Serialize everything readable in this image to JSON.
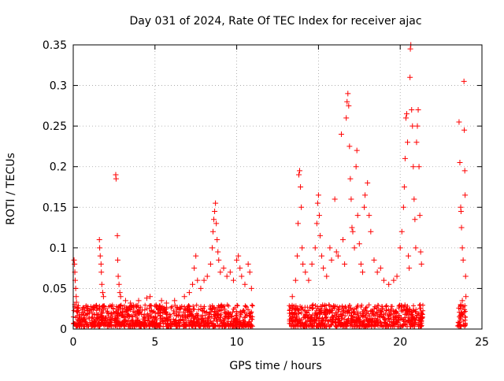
{
  "chart_data": {
    "type": "scatter",
    "title": "Day 031 of 2024, Rate Of TEC Index for receiver ajac",
    "xlabel": "GPS time / hours",
    "ylabel": "ROTI / TECUs",
    "xlim": [
      0,
      25
    ],
    "ylim": [
      0,
      0.35
    ],
    "x_ticks": [
      0,
      5,
      10,
      15,
      20,
      25
    ],
    "x_tick_labels": [
      "0",
      "5",
      "10",
      "15",
      "20",
      "25"
    ],
    "y_ticks": [
      0,
      0.05,
      0.1,
      0.15,
      0.2,
      0.25,
      0.3,
      0.35
    ],
    "y_tick_labels": [
      "0",
      "0.05",
      "0.1",
      "0.15",
      "0.2",
      "0.25",
      "0.3",
      "0.35"
    ],
    "grid": true,
    "marker": "plus",
    "marker_color": "#ff0000",
    "background_band": {
      "segments": [
        [
          0,
          11
        ],
        [
          13.2,
          21.4
        ],
        [
          23.5,
          24
        ]
      ],
      "y_low": 0.003,
      "y_high": 0.03
    },
    "series": [
      {
        "points": [
          [
            0.05,
            0.085
          ],
          [
            0.08,
            0.08
          ],
          [
            0.1,
            0.07
          ],
          [
            0.12,
            0.06
          ],
          [
            0.15,
            0.05
          ],
          [
            0.18,
            0.04
          ],
          [
            0.2,
            0.033
          ],
          [
            0.1,
            0.03
          ],
          [
            1.6,
            0.11
          ],
          [
            1.62,
            0.1
          ],
          [
            1.65,
            0.09
          ],
          [
            1.7,
            0.08
          ],
          [
            1.72,
            0.07
          ],
          [
            1.75,
            0.055
          ],
          [
            1.8,
            0.045
          ],
          [
            1.85,
            0.04
          ],
          [
            2.6,
            0.19
          ],
          [
            2.62,
            0.185
          ],
          [
            2.7,
            0.115
          ],
          [
            2.72,
            0.085
          ],
          [
            2.75,
            0.065
          ],
          [
            2.8,
            0.055
          ],
          [
            2.85,
            0.045
          ],
          [
            2.9,
            0.04
          ],
          [
            3.2,
            0.035
          ],
          [
            3.5,
            0.032
          ],
          [
            4.0,
            0.035
          ],
          [
            4.5,
            0.038
          ],
          [
            4.7,
            0.04
          ],
          [
            5.4,
            0.035
          ],
          [
            5.7,
            0.032
          ],
          [
            6.2,
            0.035
          ],
          [
            6.8,
            0.04
          ],
          [
            7.1,
            0.045
          ],
          [
            7.3,
            0.055
          ],
          [
            7.4,
            0.075
          ],
          [
            7.5,
            0.09
          ],
          [
            7.6,
            0.06
          ],
          [
            7.8,
            0.05
          ],
          [
            8.0,
            0.06
          ],
          [
            8.2,
            0.065
          ],
          [
            8.4,
            0.08
          ],
          [
            8.5,
            0.1
          ],
          [
            8.55,
            0.12
          ],
          [
            8.6,
            0.135
          ],
          [
            8.65,
            0.145
          ],
          [
            8.7,
            0.155
          ],
          [
            8.75,
            0.13
          ],
          [
            8.8,
            0.11
          ],
          [
            8.85,
            0.095
          ],
          [
            8.9,
            0.085
          ],
          [
            9.0,
            0.07
          ],
          [
            9.2,
            0.075
          ],
          [
            9.4,
            0.065
          ],
          [
            9.6,
            0.07
          ],
          [
            9.8,
            0.06
          ],
          [
            10.0,
            0.085
          ],
          [
            10.1,
            0.09
          ],
          [
            10.2,
            0.075
          ],
          [
            10.3,
            0.065
          ],
          [
            10.5,
            0.055
          ],
          [
            10.7,
            0.08
          ],
          [
            10.8,
            0.07
          ],
          [
            10.9,
            0.05
          ],
          [
            13.4,
            0.04
          ],
          [
            13.6,
            0.06
          ],
          [
            13.7,
            0.09
          ],
          [
            13.75,
            0.13
          ],
          [
            13.8,
            0.19
          ],
          [
            13.85,
            0.195
          ],
          [
            13.9,
            0.175
          ],
          [
            13.95,
            0.15
          ],
          [
            14.0,
            0.1
          ],
          [
            14.05,
            0.08
          ],
          [
            14.2,
            0.07
          ],
          [
            14.4,
            0.06
          ],
          [
            14.6,
            0.08
          ],
          [
            14.8,
            0.1
          ],
          [
            14.9,
            0.13
          ],
          [
            14.95,
            0.155
          ],
          [
            15.0,
            0.165
          ],
          [
            15.05,
            0.14
          ],
          [
            15.1,
            0.115
          ],
          [
            15.2,
            0.09
          ],
          [
            15.3,
            0.075
          ],
          [
            15.5,
            0.065
          ],
          [
            15.7,
            0.1
          ],
          [
            15.8,
            0.085
          ],
          [
            16.0,
            0.16
          ],
          [
            16.1,
            0.095
          ],
          [
            16.2,
            0.09
          ],
          [
            16.4,
            0.24
          ],
          [
            16.5,
            0.11
          ],
          [
            16.6,
            0.08
          ],
          [
            16.7,
            0.26
          ],
          [
            16.75,
            0.28
          ],
          [
            16.8,
            0.29
          ],
          [
            16.85,
            0.275
          ],
          [
            16.9,
            0.225
          ],
          [
            16.95,
            0.185
          ],
          [
            17.0,
            0.16
          ],
          [
            17.05,
            0.125
          ],
          [
            17.1,
            0.12
          ],
          [
            17.2,
            0.1
          ],
          [
            17.3,
            0.2
          ],
          [
            17.35,
            0.22
          ],
          [
            17.4,
            0.14
          ],
          [
            17.5,
            0.105
          ],
          [
            17.6,
            0.08
          ],
          [
            17.7,
            0.07
          ],
          [
            17.8,
            0.15
          ],
          [
            17.85,
            0.165
          ],
          [
            18.0,
            0.18
          ],
          [
            18.1,
            0.14
          ],
          [
            18.2,
            0.12
          ],
          [
            18.4,
            0.085
          ],
          [
            18.6,
            0.07
          ],
          [
            18.8,
            0.075
          ],
          [
            19.0,
            0.06
          ],
          [
            19.3,
            0.055
          ],
          [
            19.6,
            0.06
          ],
          [
            19.8,
            0.065
          ],
          [
            20.0,
            0.1
          ],
          [
            20.1,
            0.12
          ],
          [
            20.2,
            0.15
          ],
          [
            20.25,
            0.175
          ],
          [
            20.3,
            0.21
          ],
          [
            20.35,
            0.26
          ],
          [
            20.4,
            0.265
          ],
          [
            20.45,
            0.23
          ],
          [
            20.5,
            0.09
          ],
          [
            20.55,
            0.075
          ],
          [
            20.6,
            0.31
          ],
          [
            20.62,
            0.345
          ],
          [
            20.65,
            0.35
          ],
          [
            20.7,
            0.27
          ],
          [
            20.75,
            0.25
          ],
          [
            20.8,
            0.2
          ],
          [
            20.85,
            0.16
          ],
          [
            20.9,
            0.135
          ],
          [
            20.95,
            0.1
          ],
          [
            21.0,
            0.23
          ],
          [
            21.05,
            0.25
          ],
          [
            21.1,
            0.27
          ],
          [
            21.15,
            0.2
          ],
          [
            21.2,
            0.14
          ],
          [
            21.25,
            0.095
          ],
          [
            21.3,
            0.08
          ],
          [
            23.6,
            0.255
          ],
          [
            23.65,
            0.205
          ],
          [
            23.7,
            0.15
          ],
          [
            23.72,
            0.145
          ],
          [
            23.75,
            0.125
          ],
          [
            23.8,
            0.1
          ],
          [
            23.85,
            0.085
          ],
          [
            23.9,
            0.305
          ],
          [
            23.92,
            0.245
          ],
          [
            23.95,
            0.195
          ],
          [
            23.97,
            0.165
          ],
          [
            24.0,
            0.065
          ],
          [
            24.02,
            0.04
          ],
          [
            23.8,
            0.035
          ],
          [
            23.7,
            0.03
          ]
        ]
      }
    ]
  }
}
